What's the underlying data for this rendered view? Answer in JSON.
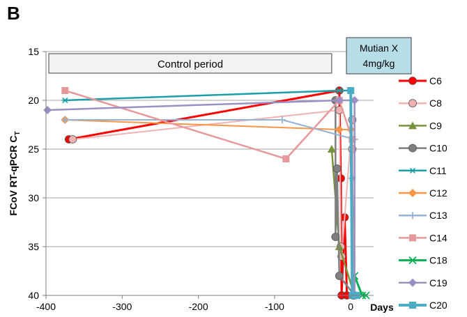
{
  "panel_label": "B",
  "chart_data": {
    "type": "line",
    "ylabel": "FCoV RT-qPCR C",
    "ylabel_sub": "T",
    "xlabel": "Days",
    "xlim": [
      -400,
      30
    ],
    "ylim": [
      15,
      40
    ],
    "y_inverted": true,
    "xticks": [
      -400,
      -300,
      -200,
      -100,
      0
    ],
    "yticks": [
      15,
      20,
      25,
      30,
      35,
      40
    ],
    "grid": "horizontal",
    "legend_position": "right",
    "annotations": {
      "control": {
        "text": "Control period",
        "x_start": -400,
        "x_end": -25,
        "fill": "#f2f2f2"
      },
      "treatment": {
        "line1": "Mutian X",
        "line2": "4mg/kg",
        "x_start": -2,
        "x_end": 25,
        "fill": "#b7dde8"
      }
    },
    "series": [
      {
        "name": "C6",
        "color": "#ff0000",
        "marker": "circle",
        "width": 3,
        "points": [
          [
            -370,
            24
          ],
          [
            -15,
            19
          ],
          [
            -13,
            28
          ],
          [
            -12,
            40
          ],
          [
            -8,
            32
          ],
          [
            -5,
            40
          ]
        ]
      },
      {
        "name": "C8",
        "color": "#f2b2b2",
        "marker": "circle",
        "width": 2,
        "points": [
          [
            -365,
            24
          ],
          [
            -15,
            21
          ],
          [
            -13,
            35
          ],
          [
            -12,
            36
          ],
          [
            2,
            22
          ],
          [
            2,
            25
          ],
          [
            3,
            40
          ]
        ]
      },
      {
        "name": "C9",
        "color": "#77933c",
        "marker": "triangle",
        "width": 2.5,
        "points": [
          [
            -25,
            25
          ],
          [
            -15,
            35
          ],
          [
            5,
            40
          ]
        ]
      },
      {
        "name": "C10",
        "color": "#7f7f7f",
        "marker": "circle",
        "width": 2.5,
        "points": [
          [
            -20,
            20
          ],
          [
            -20,
            34
          ],
          [
            -18,
            27
          ],
          [
            -15,
            38
          ],
          [
            5,
            40
          ]
        ]
      },
      {
        "name": "C11",
        "color": "#1b9fa8",
        "marker": "star",
        "width": 2.5,
        "points": [
          [
            -375,
            20
          ],
          [
            -15,
            19
          ],
          [
            0,
            19
          ],
          [
            2,
            28
          ],
          [
            5,
            40
          ]
        ]
      },
      {
        "name": "C12",
        "color": "#f79646",
        "marker": "diamond",
        "width": 2,
        "points": [
          [
            -375,
            22
          ],
          [
            -15,
            23
          ],
          [
            0,
            23
          ],
          [
            5,
            40
          ]
        ]
      },
      {
        "name": "C13",
        "color": "#95b3d7",
        "marker": "plus",
        "width": 2,
        "points": [
          [
            -375,
            22
          ],
          [
            -90,
            22
          ],
          [
            5,
            24
          ],
          [
            5,
            40
          ]
        ]
      },
      {
        "name": "C14",
        "color": "#e6999a",
        "marker": "square",
        "width": 2.5,
        "points": [
          [
            -375,
            19
          ],
          [
            -85,
            26
          ],
          [
            -15,
            20
          ],
          [
            2,
            24
          ],
          [
            3,
            40
          ]
        ]
      },
      {
        "name": "C18",
        "color": "#00b050",
        "marker": "x",
        "width": 3,
        "points": [
          [
            5,
            38
          ],
          [
            15,
            40
          ],
          [
            20,
            40
          ]
        ]
      },
      {
        "name": "C19",
        "color": "#9b8fc4",
        "marker": "diamond",
        "width": 2.5,
        "points": [
          [
            -398,
            21
          ],
          [
            -15,
            20
          ],
          [
            5,
            20
          ],
          [
            5,
            40
          ]
        ]
      },
      {
        "name": "C20",
        "color": "#4bacc6",
        "marker": "square",
        "width": 4,
        "points": [
          [
            0,
            19
          ],
          [
            2,
            40
          ],
          [
            8,
            40
          ]
        ]
      }
    ]
  }
}
